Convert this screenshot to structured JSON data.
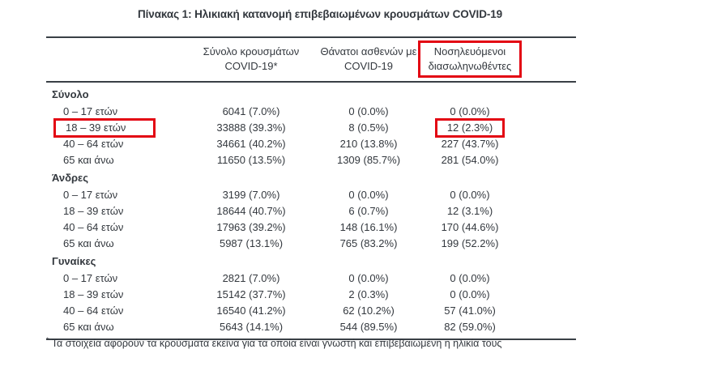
{
  "title": "Πίνακας 1: Ηλικιακή κατανομή επιβεβαιωμένων κρουσμάτων COVID-19",
  "colors": {
    "background": "#ffffff",
    "text": "#33383e",
    "rule": "#3a4046",
    "highlight_red": "#e30613"
  },
  "table": {
    "columns": [
      {
        "id": "cases",
        "line1": "Σύνολο κρουσμάτων",
        "line2": "COVID-19*",
        "highlighted": false
      },
      {
        "id": "deaths",
        "line1": "Θάνατοι ασθενών με",
        "line2": "COVID-19",
        "highlighted": false
      },
      {
        "id": "intubated",
        "line1": "Νοσηλευόμενοι",
        "line2": "διασωληνωθέντες",
        "highlighted": true
      }
    ],
    "sections": [
      {
        "name": "Σύνολο",
        "rows": [
          {
            "label": "0 – 17 ετών",
            "cases": "6041 (7.0%)",
            "deaths": "0 (0.0%)",
            "intubated": "0 (0.0%)"
          },
          {
            "label": "18 – 39 ετών",
            "cases": "33888 (39.3%)",
            "deaths": "8 (0.5%)",
            "intubated": "12 (2.3%)",
            "label_highlighted": true,
            "intubated_highlighted": true
          },
          {
            "label": "40 – 64 ετών",
            "cases": "34661 (40.2%)",
            "deaths": "210 (13.8%)",
            "intubated": "227 (43.7%)"
          },
          {
            "label": "65 και άνω",
            "cases": "11650 (13.5%)",
            "deaths": "1309 (85.7%)",
            "intubated": "281 (54.0%)"
          }
        ]
      },
      {
        "name": "Άνδρες",
        "rows": [
          {
            "label": "0 – 17 ετών",
            "cases": "3199 (7.0%)",
            "deaths": "0 (0.0%)",
            "intubated": "0 (0.0%)"
          },
          {
            "label": "18 – 39 ετών",
            "cases": "18644 (40.7%)",
            "deaths": "6 (0.7%)",
            "intubated": "12 (3.1%)"
          },
          {
            "label": "40 – 64 ετών",
            "cases": "17963 (39.2%)",
            "deaths": "148 (16.1%)",
            "intubated": "170 (44.6%)"
          },
          {
            "label": "65 και άνω",
            "cases": "5987 (13.1%)",
            "deaths": "765 (83.2%)",
            "intubated": "199 (52.2%)"
          }
        ]
      },
      {
        "name": "Γυναίκες",
        "rows": [
          {
            "label": "0 – 17 ετών",
            "cases": "2821 (7.0%)",
            "deaths": "0 (0.0%)",
            "intubated": "0 (0.0%)"
          },
          {
            "label": "18 – 39 ετών",
            "cases": "15142 (37.7%)",
            "deaths": "2 (0.3%)",
            "intubated": "0 (0.0%)"
          },
          {
            "label": "40 – 64 ετών",
            "cases": "16540 (41.2%)",
            "deaths": "62 (10.2%)",
            "intubated": "57 (41.0%)"
          },
          {
            "label": "65 και άνω",
            "cases": "5643 (14.1%)",
            "deaths": "544 (89.5%)",
            "intubated": "82 (59.0%)"
          }
        ]
      }
    ]
  },
  "footnote": {
    "marker": "*",
    "text": "Τα στοιχεία αφορούν τα κρούσματα εκείνα για τα οποία είναι γνωστή και επιβεβαιωμένη η ηλικία τους"
  },
  "annotations": {
    "highlight_boxes": [
      "intubated-column-header",
      "total-18-39-age-label",
      "total-18-39-intubated-value"
    ]
  }
}
